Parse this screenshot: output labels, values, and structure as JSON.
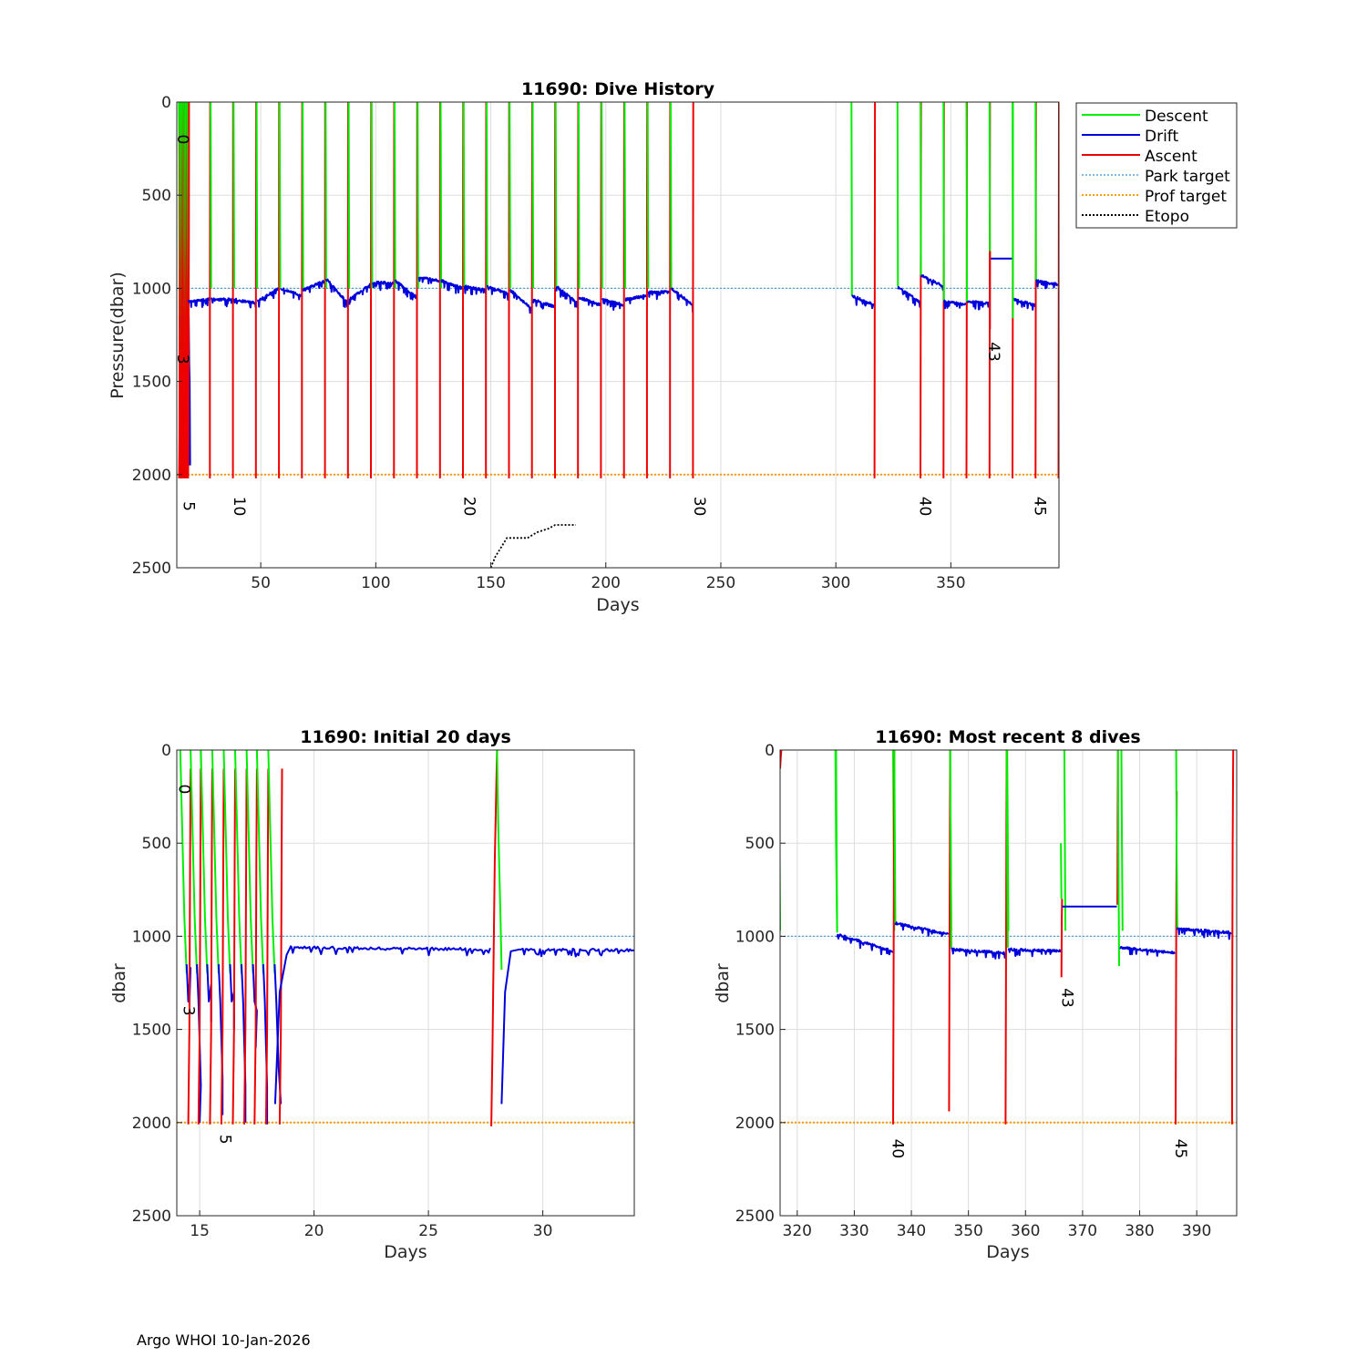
{
  "footer": "Argo WHOI 10-Jan-2026",
  "colors": {
    "descent": "#00ee00",
    "drift": "#0000dd",
    "ascent": "#ee0000",
    "park": "#4aa3df",
    "prof": "#ff9900",
    "etopo": "#000000",
    "grid": "#dddddd",
    "axis": "#262626"
  },
  "legend": [
    "Descent",
    "Drift",
    "Ascent",
    "Park target",
    "Prof target",
    "Etopo"
  ],
  "chart_data": [
    {
      "id": "main",
      "type": "line",
      "title": "11690: Dive History",
      "xlabel": "Days",
      "ylabel": "Pressure(dbar)",
      "xlim": [
        13.5,
        397
      ],
      "ylim": [
        0,
        2500
      ],
      "y_reversed": true,
      "xticks": [
        50,
        100,
        150,
        200,
        250,
        300,
        350
      ],
      "yticks": [
        0,
        500,
        1000,
        1500,
        2000,
        2500
      ],
      "park_target": 1000,
      "prof_target": 2000,
      "early_cycles": [
        14.4,
        14.9,
        15.4,
        15.9,
        16.4,
        16.9,
        17.4,
        17.9,
        18.3
      ],
      "cycle_days": [
        28,
        38,
        48,
        58,
        68,
        78,
        88,
        98,
        108,
        118,
        128,
        138,
        148,
        158,
        168,
        178,
        188,
        198,
        208,
        218,
        228,
        238
      ],
      "drift_start": [
        1060,
        1060,
        1070,
        1000,
        1010,
        950,
        1060,
        970,
        960,
        940,
        960,
        990,
        990,
        1010,
        1060,
        990,
        1050,
        1060,
        1060,
        1020,
        1000
      ],
      "drift_end": [
        1060,
        1080,
        1000,
        1040,
        960,
        1080,
        980,
        970,
        1050,
        960,
        1000,
        1010,
        1030,
        1110,
        1100,
        1080,
        1090,
        1090,
        1040,
        1020,
        1090
      ],
      "gap_dives": [
        {
          "x0": 307,
          "x1": 317,
          "d0": 1040,
          "d1": 1090
        },
        {
          "x0": 327,
          "x1": 337,
          "d0": 990,
          "d1": 1080
        },
        {
          "x0": 337,
          "x1": 347,
          "d0": 930,
          "d1": 990
        },
        {
          "x0": 347,
          "x1": 357,
          "d0": 1070,
          "d1": 1090
        },
        {
          "x0": 357,
          "x1": 367,
          "d0": 1070,
          "d1": 1080
        },
        {
          "x0": 367,
          "x1": 377,
          "d0": 840,
          "d1": 840
        },
        {
          "x0": 377,
          "x1": 387,
          "d0": 1060,
          "d1": 1090
        },
        {
          "x0": 387,
          "x1": 397,
          "d0": 960,
          "d1": 980
        }
      ],
      "etopo": [
        [
          150,
          2500
        ],
        [
          152,
          2440
        ],
        [
          155,
          2380
        ],
        [
          157,
          2340
        ],
        [
          166,
          2340
        ],
        [
          170,
          2310
        ],
        [
          175,
          2290
        ],
        [
          178,
          2270
        ],
        [
          187,
          2270
        ]
      ],
      "cycle_labels": [
        {
          "text": "0",
          "x": 13.8,
          "y": 200
        },
        {
          "text": "3",
          "x": 13.8,
          "y": 1380
        },
        {
          "text": "5",
          "x": 16.5,
          "y": 2170
        },
        {
          "text": "10",
          "x": 38.5,
          "y": 2170
        },
        {
          "text": "20",
          "x": 138.5,
          "y": 2170
        },
        {
          "text": "30",
          "x": 238.5,
          "y": 2170
        },
        {
          "text": "40",
          "x": 336.5,
          "y": 2170
        },
        {
          "text": "43",
          "x": 366.5,
          "y": 1340
        },
        {
          "text": "45",
          "x": 386.5,
          "y": 2170
        }
      ]
    },
    {
      "id": "initial",
      "type": "line",
      "title": "11690: Initial 20 days",
      "xlabel": "Days",
      "ylabel": "dbar",
      "xlim": [
        14,
        34
      ],
      "ylim": [
        0,
        2500
      ],
      "y_reversed": true,
      "xticks": [
        15,
        20,
        25,
        30
      ],
      "yticks": [
        0,
        500,
        1000,
        1500,
        2000,
        2500
      ],
      "park_target": 1000,
      "prof_target": 2000,
      "cycle_labels": [
        {
          "text": "0",
          "x": 14.1,
          "y": 210
        },
        {
          "text": "3",
          "x": 14.3,
          "y": 1400
        },
        {
          "text": "5",
          "x": 15.9,
          "y": 2090
        }
      ]
    },
    {
      "id": "recent",
      "type": "line",
      "title": "11690: Most recent 8 dives",
      "xlabel": "Days",
      "ylabel": "dbar",
      "xlim": [
        317,
        397
      ],
      "ylim": [
        0,
        2500
      ],
      "y_reversed": true,
      "xticks": [
        320,
        330,
        340,
        350,
        360,
        370,
        380,
        390
      ],
      "yticks": [
        0,
        500,
        1000,
        1500,
        2000,
        2500
      ],
      "park_target": 1000,
      "prof_target": 2000,
      "cycle_labels": [
        {
          "text": "40",
          "x": 336.7,
          "y": 2140
        },
        {
          "text": "43",
          "x": 366.4,
          "y": 1330
        },
        {
          "text": "45",
          "x": 386.3,
          "y": 2140
        }
      ]
    }
  ]
}
